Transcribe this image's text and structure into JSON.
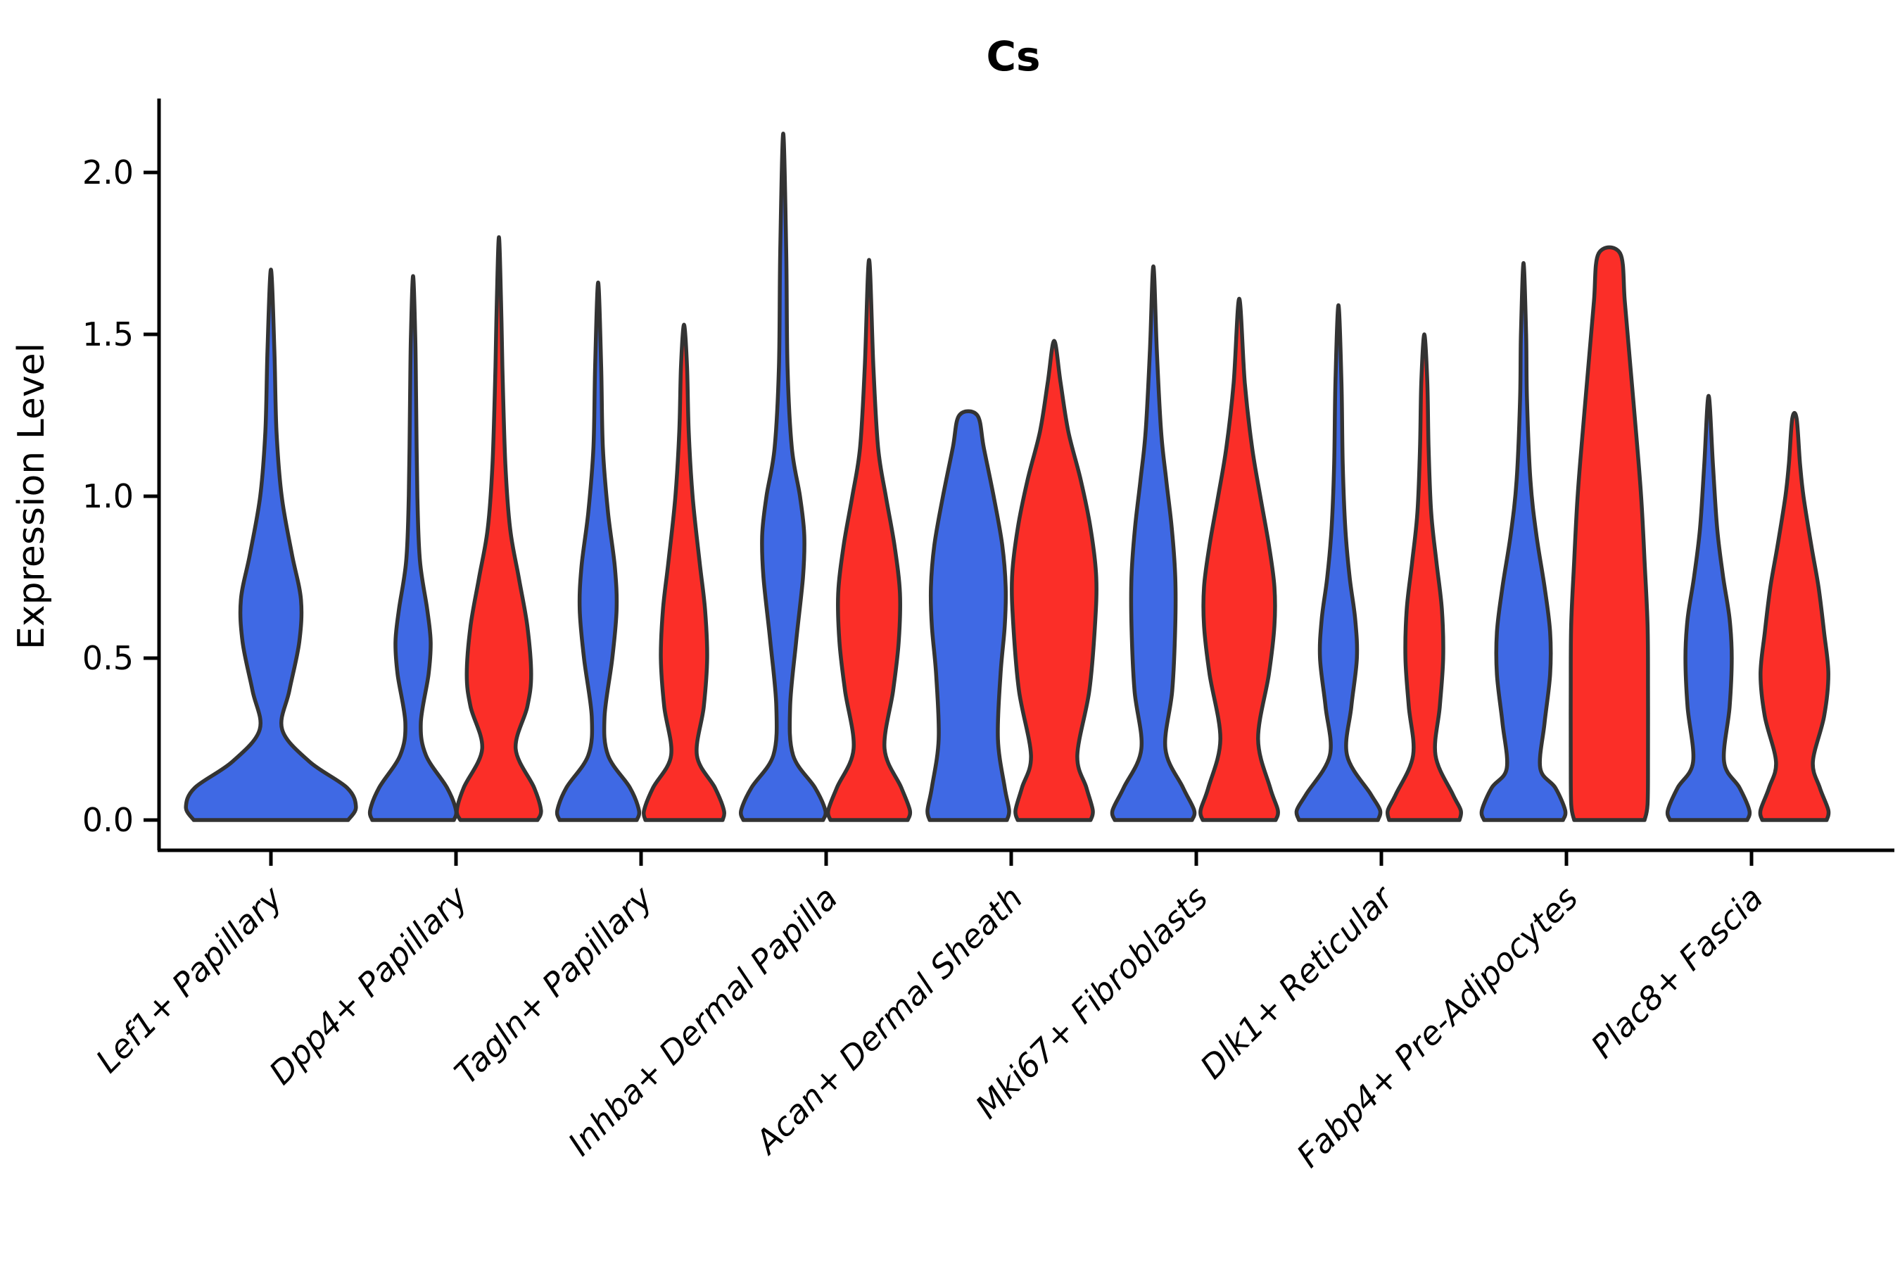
{
  "title": "Cs",
  "axes": {
    "ylabel": "Expression Level",
    "yticks": [
      {
        "v": 0.0,
        "label": "0.0"
      },
      {
        "v": 0.5,
        "label": "0.5"
      },
      {
        "v": 1.0,
        "label": "1.0"
      },
      {
        "v": 1.5,
        "label": "1.5"
      },
      {
        "v": 2.0,
        "label": "2.0"
      }
    ]
  },
  "colors": {
    "blue": "#3f69e4",
    "red": "#fb2e28",
    "outline": "#333333",
    "axis": "#000000"
  },
  "chart_data": {
    "type": "violin",
    "title": "Cs",
    "ylabel": "Expression Level",
    "xlabel": "",
    "ylim": [
      -0.09,
      2.23
    ],
    "grid": false,
    "legend": "none",
    "x_tick_rotation": 45,
    "categories": [
      "Lef1+ Papillary",
      "Dpp4+ Papillary",
      "Tagln+ Papillary",
      "Inhba+ Dermal Papilla",
      "Acan+ Dermal Sheath",
      "Mki67+ Fibroblasts",
      "Dlk1+ Reticular",
      "Fabp4+ Pre-Adipocytes",
      "Plac8+ Fascia"
    ],
    "series": [
      {
        "id": "group-blue",
        "color_key": "blue"
      },
      {
        "id": "group-red",
        "color_key": "red"
      }
    ],
    "violins": [
      {
        "category_index": 0,
        "group": "group-blue",
        "offset": 0,
        "max_expression": 1.7,
        "flat_top": false,
        "profile": [
          [
            0,
            1.8
          ],
          [
            0.04,
            1.98
          ],
          [
            0.1,
            1.77
          ],
          [
            0.18,
            0.9
          ],
          [
            0.28,
            0.26
          ],
          [
            0.4,
            0.43
          ],
          [
            0.55,
            0.66
          ],
          [
            0.68,
            0.7
          ],
          [
            0.82,
            0.49
          ],
          [
            1.0,
            0.25
          ],
          [
            1.2,
            0.13
          ],
          [
            1.45,
            0.08
          ],
          [
            1.7,
            0
          ]
        ]
      },
      {
        "category_index": 1,
        "group": "group-blue",
        "offset": -1,
        "max_expression": 1.68,
        "flat_top": false,
        "profile": [
          [
            0,
            0.95
          ],
          [
            0.03,
            1.0
          ],
          [
            0.1,
            0.79
          ],
          [
            0.2,
            0.3
          ],
          [
            0.3,
            0.18
          ],
          [
            0.45,
            0.36
          ],
          [
            0.55,
            0.41
          ],
          [
            0.65,
            0.33
          ],
          [
            0.8,
            0.16
          ],
          [
            1.0,
            0.1
          ],
          [
            1.3,
            0.07
          ],
          [
            1.5,
            0.05
          ],
          [
            1.68,
            0
          ]
        ]
      },
      {
        "category_index": 1,
        "group": "group-red",
        "offset": 1,
        "max_expression": 1.8,
        "flat_top": false,
        "profile": [
          [
            0,
            0.9
          ],
          [
            0.03,
            0.98
          ],
          [
            0.1,
            0.82
          ],
          [
            0.22,
            0.39
          ],
          [
            0.35,
            0.66
          ],
          [
            0.45,
            0.75
          ],
          [
            0.6,
            0.66
          ],
          [
            0.75,
            0.46
          ],
          [
            0.9,
            0.26
          ],
          [
            1.1,
            0.15
          ],
          [
            1.4,
            0.08
          ],
          [
            1.6,
            0.05
          ],
          [
            1.8,
            0
          ]
        ]
      },
      {
        "category_index": 2,
        "group": "group-blue",
        "offset": -1,
        "max_expression": 1.66,
        "flat_top": false,
        "profile": [
          [
            0,
            0.9
          ],
          [
            0.03,
            0.95
          ],
          [
            0.1,
            0.74
          ],
          [
            0.2,
            0.23
          ],
          [
            0.32,
            0.15
          ],
          [
            0.5,
            0.33
          ],
          [
            0.65,
            0.43
          ],
          [
            0.78,
            0.39
          ],
          [
            0.95,
            0.23
          ],
          [
            1.15,
            0.11
          ],
          [
            1.4,
            0.07
          ],
          [
            1.66,
            0
          ]
        ]
      },
      {
        "category_index": 2,
        "group": "group-red",
        "offset": 1,
        "max_expression": 1.53,
        "flat_top": false,
        "profile": [
          [
            0,
            0.9
          ],
          [
            0.03,
            0.93
          ],
          [
            0.1,
            0.72
          ],
          [
            0.2,
            0.3
          ],
          [
            0.35,
            0.46
          ],
          [
            0.5,
            0.54
          ],
          [
            0.65,
            0.49
          ],
          [
            0.8,
            0.36
          ],
          [
            1.0,
            0.2
          ],
          [
            1.2,
            0.11
          ],
          [
            1.4,
            0.07
          ],
          [
            1.53,
            0
          ]
        ]
      },
      {
        "category_index": 3,
        "group": "group-blue",
        "offset": -1,
        "max_expression": 2.12,
        "flat_top": false,
        "profile": [
          [
            0,
            0.93
          ],
          [
            0.03,
            0.98
          ],
          [
            0.1,
            0.74
          ],
          [
            0.2,
            0.23
          ],
          [
            0.35,
            0.16
          ],
          [
            0.55,
            0.3
          ],
          [
            0.75,
            0.46
          ],
          [
            0.88,
            0.49
          ],
          [
            1.0,
            0.39
          ],
          [
            1.15,
            0.2
          ],
          [
            1.4,
            0.1
          ],
          [
            1.75,
            0.07
          ],
          [
            2.12,
            0
          ]
        ]
      },
      {
        "category_index": 3,
        "group": "group-red",
        "offset": 1,
        "max_expression": 1.73,
        "flat_top": false,
        "profile": [
          [
            0,
            0.9
          ],
          [
            0.03,
            0.95
          ],
          [
            0.1,
            0.75
          ],
          [
            0.22,
            0.36
          ],
          [
            0.4,
            0.56
          ],
          [
            0.55,
            0.69
          ],
          [
            0.7,
            0.72
          ],
          [
            0.85,
            0.59
          ],
          [
            1.0,
            0.39
          ],
          [
            1.15,
            0.21
          ],
          [
            1.4,
            0.1
          ],
          [
            1.73,
            0
          ]
        ]
      },
      {
        "category_index": 4,
        "group": "group-blue",
        "offset": -1,
        "max_expression": 1.25,
        "flat_top": true,
        "profile": [
          [
            0,
            0.9
          ],
          [
            0.03,
            0.95
          ],
          [
            0.1,
            0.85
          ],
          [
            0.25,
            0.69
          ],
          [
            0.45,
            0.75
          ],
          [
            0.6,
            0.85
          ],
          [
            0.72,
            0.87
          ],
          [
            0.85,
            0.79
          ],
          [
            1.0,
            0.59
          ],
          [
            1.15,
            0.36
          ],
          [
            1.25,
            0.21
          ]
        ]
      },
      {
        "category_index": 4,
        "group": "group-red",
        "offset": 1,
        "max_expression": 1.48,
        "flat_top": false,
        "profile": [
          [
            0,
            0.85
          ],
          [
            0.03,
            0.9
          ],
          [
            0.1,
            0.75
          ],
          [
            0.2,
            0.54
          ],
          [
            0.4,
            0.82
          ],
          [
            0.6,
            0.95
          ],
          [
            0.75,
            0.98
          ],
          [
            0.9,
            0.85
          ],
          [
            1.05,
            0.62
          ],
          [
            1.2,
            0.33
          ],
          [
            1.35,
            0.15
          ],
          [
            1.48,
            0
          ]
        ]
      },
      {
        "category_index": 5,
        "group": "group-blue",
        "offset": -1,
        "max_expression": 1.71,
        "flat_top": false,
        "profile": [
          [
            0,
            0.9
          ],
          [
            0.03,
            0.95
          ],
          [
            0.1,
            0.69
          ],
          [
            0.22,
            0.28
          ],
          [
            0.4,
            0.44
          ],
          [
            0.6,
            0.51
          ],
          [
            0.75,
            0.51
          ],
          [
            0.9,
            0.43
          ],
          [
            1.05,
            0.3
          ],
          [
            1.2,
            0.18
          ],
          [
            1.45,
            0.08
          ],
          [
            1.71,
            0
          ]
        ]
      },
      {
        "category_index": 5,
        "group": "group-red",
        "offset": 1,
        "max_expression": 1.61,
        "flat_top": false,
        "profile": [
          [
            0,
            0.85
          ],
          [
            0.03,
            0.9
          ],
          [
            0.1,
            0.72
          ],
          [
            0.25,
            0.44
          ],
          [
            0.45,
            0.69
          ],
          [
            0.6,
            0.82
          ],
          [
            0.72,
            0.82
          ],
          [
            0.85,
            0.69
          ],
          [
            1.0,
            0.49
          ],
          [
            1.15,
            0.3
          ],
          [
            1.35,
            0.13
          ],
          [
            1.61,
            0
          ]
        ]
      },
      {
        "category_index": 6,
        "group": "group-blue",
        "offset": -1,
        "max_expression": 1.59,
        "flat_top": false,
        "profile": [
          [
            0,
            0.92
          ],
          [
            0.03,
            0.97
          ],
          [
            0.08,
            0.75
          ],
          [
            0.2,
            0.2
          ],
          [
            0.35,
            0.3
          ],
          [
            0.5,
            0.43
          ],
          [
            0.62,
            0.39
          ],
          [
            0.75,
            0.26
          ],
          [
            0.9,
            0.16
          ],
          [
            1.1,
            0.1
          ],
          [
            1.35,
            0.07
          ],
          [
            1.59,
            0
          ]
        ]
      },
      {
        "category_index": 6,
        "group": "group-red",
        "offset": 1,
        "max_expression": 1.5,
        "flat_top": false,
        "profile": [
          [
            0,
            0.82
          ],
          [
            0.03,
            0.85
          ],
          [
            0.08,
            0.66
          ],
          [
            0.2,
            0.26
          ],
          [
            0.35,
            0.36
          ],
          [
            0.5,
            0.44
          ],
          [
            0.65,
            0.41
          ],
          [
            0.8,
            0.28
          ],
          [
            0.95,
            0.16
          ],
          [
            1.15,
            0.1
          ],
          [
            1.35,
            0.07
          ],
          [
            1.5,
            0
          ]
        ]
      },
      {
        "category_index": 7,
        "group": "group-blue",
        "offset": -1,
        "max_expression": 1.72,
        "flat_top": false,
        "profile": [
          [
            0,
            0.92
          ],
          [
            0.03,
            0.97
          ],
          [
            0.1,
            0.74
          ],
          [
            0.16,
            0.39
          ],
          [
            0.3,
            0.49
          ],
          [
            0.45,
            0.62
          ],
          [
            0.58,
            0.62
          ],
          [
            0.72,
            0.49
          ],
          [
            0.88,
            0.3
          ],
          [
            1.05,
            0.16
          ],
          [
            1.3,
            0.08
          ],
          [
            1.5,
            0.06
          ],
          [
            1.72,
            0
          ]
        ]
      },
      {
        "category_index": 7,
        "group": "group-red",
        "offset": 1,
        "max_expression": 1.75,
        "flat_top": true,
        "profile": [
          [
            0,
            0.82
          ],
          [
            0.05,
            0.89
          ],
          [
            0.2,
            0.9
          ],
          [
            0.4,
            0.9
          ],
          [
            0.6,
            0.89
          ],
          [
            0.8,
            0.82
          ],
          [
            1.0,
            0.74
          ],
          [
            1.2,
            0.62
          ],
          [
            1.4,
            0.49
          ],
          [
            1.6,
            0.36
          ],
          [
            1.75,
            0.25
          ]
        ]
      },
      {
        "category_index": 8,
        "group": "group-blue",
        "offset": -1,
        "max_expression": 1.31,
        "flat_top": false,
        "profile": [
          [
            0,
            0.9
          ],
          [
            0.03,
            0.95
          ],
          [
            0.1,
            0.72
          ],
          [
            0.18,
            0.36
          ],
          [
            0.35,
            0.49
          ],
          [
            0.5,
            0.54
          ],
          [
            0.62,
            0.49
          ],
          [
            0.75,
            0.34
          ],
          [
            0.9,
            0.2
          ],
          [
            1.1,
            0.1
          ],
          [
            1.31,
            0
          ]
        ]
      },
      {
        "category_index": 8,
        "group": "group-red",
        "offset": 1,
        "max_expression": 1.24,
        "flat_top": true,
        "profile": [
          [
            0,
            0.75
          ],
          [
            0.03,
            0.79
          ],
          [
            0.1,
            0.59
          ],
          [
            0.18,
            0.43
          ],
          [
            0.32,
            0.69
          ],
          [
            0.45,
            0.79
          ],
          [
            0.58,
            0.69
          ],
          [
            0.72,
            0.56
          ],
          [
            0.85,
            0.39
          ],
          [
            1.0,
            0.21
          ],
          [
            1.1,
            0.13
          ],
          [
            1.24,
            0.05
          ]
        ]
      }
    ]
  }
}
